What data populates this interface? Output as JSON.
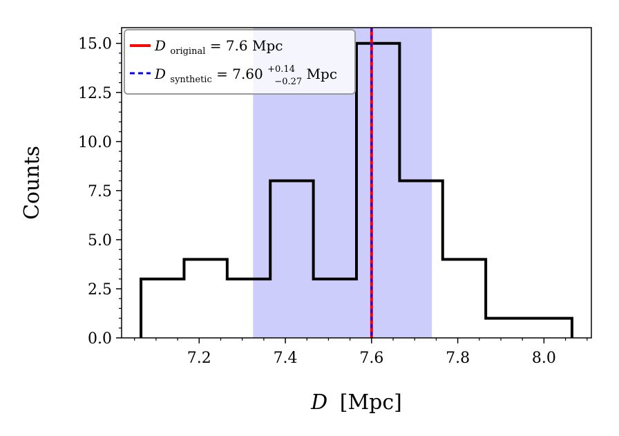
{
  "chart_data": {
    "type": "histogram",
    "xlabel_var": "D",
    "xlabel_unit": "[Mpc]",
    "ylabel": "Counts",
    "xlim": [
      7.02,
      8.11
    ],
    "ylim": [
      0.0,
      15.8
    ],
    "x_ticks": [
      7.2,
      7.4,
      7.6,
      7.8,
      8.0
    ],
    "x_tick_labels": [
      "7.2",
      "7.4",
      "7.6",
      "7.8",
      "8.0"
    ],
    "y_ticks": [
      0.0,
      2.5,
      5.0,
      7.5,
      10.0,
      12.5,
      15.0
    ],
    "y_tick_labels": [
      "0.0",
      "2.5",
      "5.0",
      "7.5",
      "10.0",
      "12.5",
      "15.0"
    ],
    "bin_edges": [
      7.065,
      7.165,
      7.265,
      7.365,
      7.465,
      7.565,
      7.665,
      7.765,
      7.865,
      7.965,
      8.065
    ],
    "counts": [
      3,
      4,
      3,
      8,
      3,
      15,
      8,
      4,
      1,
      1
    ],
    "shaded_band": {
      "xmin": 7.325,
      "xmax": 7.74,
      "color": "#cdcdfb"
    },
    "vlines": [
      {
        "name": "original",
        "x": 7.6,
        "color": "#ff0000",
        "style": "solid"
      },
      {
        "name": "synthetic",
        "x": 7.6,
        "color": "#0000ff",
        "style": "dashed"
      }
    ],
    "legend": {
      "placement": "top-left",
      "entries": [
        {
          "var": "D",
          "sub": "original",
          "eq": " = 7.6 Mpc",
          "color": "#ff0000",
          "style": "solid"
        },
        {
          "var": "D",
          "sub": "synthetic",
          "eq": " = 7.60",
          "sup_err": "+0.14",
          "sub_err": "−0.27",
          "unit": " Mpc",
          "color": "#0000ff",
          "style": "dashed"
        }
      ]
    }
  }
}
